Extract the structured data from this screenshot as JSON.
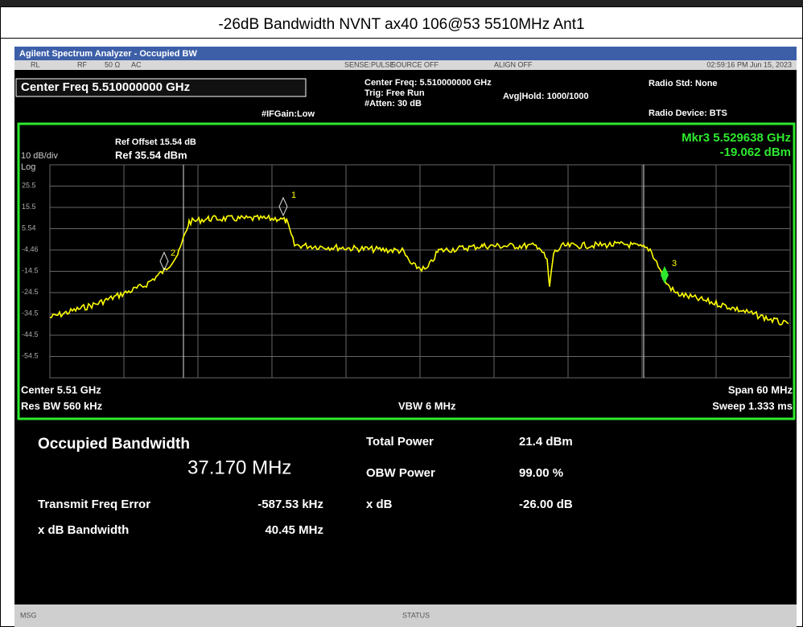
{
  "title": "-26dB Bandwidth NVNT ax40 106@53 5510MHz Ant1",
  "window_title": "Agilent Spectrum Analyzer - Occupied BW",
  "status_bar": [
    "RL",
    "RF",
    "50 Ω",
    "AC",
    "SENSE:PULSE",
    "SOURCE OFF",
    "ALIGN OFF",
    "02:59:16 PM Jun 15, 2023"
  ],
  "settings": {
    "center_freq": "Center Freq 5.510000000 GHz",
    "if_gain": "#IFGain:Low",
    "center_freq_info": "Center Freq: 5.510000000 GHz",
    "trig": "Trig: Free Run",
    "atten": "#Atten: 30 dB",
    "avg_hold": "Avg|Hold: 1000/1000",
    "radio_std": "Radio Std: None",
    "radio_device": "Radio Device: BTS"
  },
  "plot": {
    "ref_offset": "Ref Offset 15.54 dB",
    "ref": "Ref 35.54 dBm",
    "scale": "10 dB/div",
    "scale_type": "Log",
    "marker_freq": "Mkr3  5.529638 GHz",
    "marker_level": "-19.062 dBm",
    "y_labels": [
      "25.5",
      "15.5",
      "5.54",
      "-4.46",
      "-14.5",
      "-24.5",
      "-34.5",
      "-44.5",
      "-54.5"
    ],
    "markers": [
      "1",
      "2",
      "3"
    ],
    "center": "Center  5.51 GHz",
    "res_bw": "Res BW  560 kHz",
    "vbw": "VBW  6 MHz",
    "span": "Span 60 MHz",
    "sweep": "Sweep  1.333 ms"
  },
  "results": {
    "title": "Occupied Bandwidth",
    "value": "37.170 MHz",
    "left": [
      [
        "Transmit Freq Error",
        "-587.53 kHz"
      ],
      [
        "x dB Bandwidth",
        "40.45 MHz"
      ]
    ],
    "right": [
      [
        "Total Power",
        "21.4 dBm"
      ],
      [
        "OBW Power",
        "99.00 %"
      ],
      [
        "x dB",
        "-26.00 dB"
      ]
    ]
  },
  "status": {
    "msg": "MSG",
    "status": "STATUS"
  }
}
